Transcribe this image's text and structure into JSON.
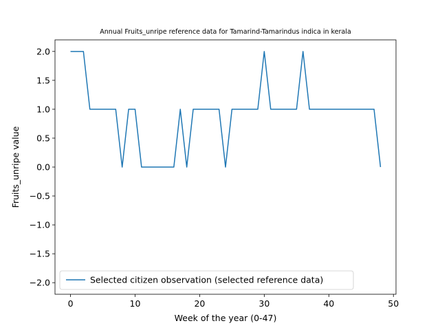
{
  "chart_data": {
    "type": "line",
    "title": "Annual Fruits_unripe reference data for Tamarind-Tamarindus indica in kerala",
    "xlabel": "Week of the year (0-47)",
    "ylabel": "Fruits_unripe value",
    "xlim": [
      -2.4,
      50.4
    ],
    "ylim": [
      -2.2,
      2.2
    ],
    "xticks": [
      0,
      10,
      20,
      30,
      40,
      50
    ],
    "yticks": [
      -2.0,
      -1.5,
      -1.0,
      -0.5,
      0.0,
      0.5,
      1.0,
      1.5,
      2.0
    ],
    "xtick_labels": [
      "0",
      "10",
      "20",
      "30",
      "40",
      "50"
    ],
    "ytick_labels": [
      "−2.0",
      "−1.5",
      "−1.0",
      "−0.5",
      "0.0",
      "0.5",
      "1.0",
      "1.5",
      "2.0"
    ],
    "grid": false,
    "legend_position": "lower-left",
    "series": [
      {
        "name": "Selected citizen observation (selected reference data)",
        "color": "#1f77b4",
        "x": [
          0,
          1,
          2,
          3,
          4,
          5,
          6,
          7,
          8,
          9,
          10,
          11,
          12,
          13,
          14,
          15,
          16,
          17,
          18,
          19,
          20,
          21,
          22,
          23,
          24,
          25,
          26,
          27,
          28,
          29,
          30,
          31,
          32,
          33,
          34,
          35,
          36,
          37,
          38,
          39,
          40,
          41,
          42,
          43,
          44,
          45,
          46,
          47,
          48
        ],
        "y": [
          2,
          2,
          2,
          1,
          1,
          1,
          1,
          1,
          0,
          1,
          1,
          0,
          0,
          0,
          0,
          0,
          0,
          1,
          0,
          1,
          1,
          1,
          1,
          1,
          0,
          1,
          1,
          1,
          1,
          1,
          2,
          1,
          1,
          1,
          1,
          1,
          2,
          1,
          1,
          1,
          1,
          1,
          1,
          1,
          1,
          1,
          1,
          1,
          0
        ]
      }
    ]
  }
}
